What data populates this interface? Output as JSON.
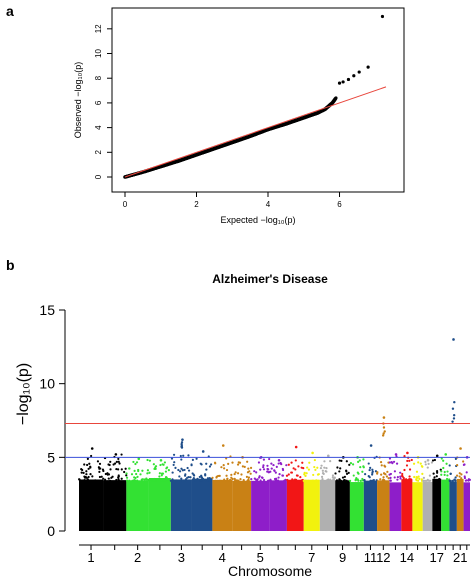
{
  "panels": {
    "a": "a",
    "b": "b"
  },
  "chart_data": [
    {
      "type": "scatter",
      "panel": "a",
      "title": "",
      "xlabel": "Expected  −log₁₀(p)",
      "ylabel": "Observed  −log₁₀(p)",
      "xlim": [
        0,
        7.3
      ],
      "ylim": [
        0,
        13.2
      ],
      "xticks": [
        "0",
        "2",
        "4",
        "6"
      ],
      "yticks": [
        "0",
        "2",
        "4",
        "6",
        "8",
        "10",
        "12"
      ],
      "grid": false,
      "series": [
        {
          "color": "#000000",
          "points": [
            [
              0.0,
              0.0
            ],
            [
              0.5,
              0.4
            ],
            [
              1.0,
              0.85
            ],
            [
              1.5,
              1.3
            ],
            [
              2.0,
              1.8
            ],
            [
              2.5,
              2.3
            ],
            [
              3.0,
              2.8
            ],
            [
              3.5,
              3.3
            ],
            [
              4.0,
              3.85
            ],
            [
              4.5,
              4.3
            ],
            [
              5.0,
              4.8
            ],
            [
              5.2,
              5.0
            ],
            [
              5.4,
              5.2
            ],
            [
              5.6,
              5.5
            ],
            [
              5.8,
              6.0
            ],
            [
              5.9,
              6.4
            ],
            [
              6.0,
              7.6
            ],
            [
              6.1,
              7.7
            ],
            [
              6.25,
              7.9
            ],
            [
              6.4,
              8.2
            ],
            [
              6.55,
              8.5
            ],
            [
              6.8,
              8.9
            ],
            [
              7.2,
              13.0
            ]
          ]
        },
        {
          "color": "#e8463c",
          "line": [
            [
              0,
              0
            ],
            [
              7.3,
              7.3
            ]
          ]
        }
      ]
    },
    {
      "type": "scatter",
      "panel": "b",
      "title": "Alzheimer's Disease",
      "xlabel": "Chromosome",
      "ylabel": "−log₁₀(p)",
      "ylim": [
        0,
        15
      ],
      "yticks": [
        "0",
        "5",
        "10",
        "15"
      ],
      "xtick_labels": [
        "1",
        "2",
        "3",
        "4",
        "5",
        "7",
        "9",
        "11",
        "12",
        "14",
        "17",
        "21"
      ],
      "thresholds": [
        {
          "value": 7.3,
          "color": "#e8463c"
        },
        {
          "value": 5.0,
          "color": "#3a4fd9"
        }
      ],
      "chromosomes": [
        {
          "label": "1",
          "color": "#000000",
          "peak": 5.6
        },
        {
          "label": "",
          "color": "#000000",
          "peak": 5.2
        },
        {
          "label": "2",
          "color": "#33e133",
          "peak": 4.9
        },
        {
          "label": "",
          "color": "#33e133",
          "peak": 4.8
        },
        {
          "label": "3",
          "color": "#1f4e8a",
          "peak": 6.2
        },
        {
          "label": "",
          "color": "#1f4e8a",
          "peak": 5.4
        },
        {
          "label": "4",
          "color": "#c98115",
          "peak": 5.8
        },
        {
          "label": "",
          "color": "#c98115",
          "peak": 5.0
        },
        {
          "label": "5",
          "color": "#8e1ec9",
          "peak": 5.0
        },
        {
          "label": "",
          "color": "#8e1ec9",
          "peak": 4.8
        },
        {
          "label": "",
          "color": "#f21616",
          "peak": 5.7
        },
        {
          "label": "7",
          "color": "#f2f20d",
          "peak": 5.3
        },
        {
          "label": "",
          "color": "#b0b0b0",
          "peak": 5.1
        },
        {
          "label": "9",
          "color": "#000000",
          "peak": 5.0
        },
        {
          "label": "",
          "color": "#33e133",
          "peak": 5.0
        },
        {
          "label": "11",
          "color": "#1f4e8a",
          "peak": 5.8
        },
        {
          "label": "12",
          "color": "#c98115",
          "peak": 7.7
        },
        {
          "label": "",
          "color": "#8e1ec9",
          "peak": 5.2
        },
        {
          "label": "14",
          "color": "#f21616",
          "peak": 5.3
        },
        {
          "label": "",
          "color": "#f2f20d",
          "peak": 5.0
        },
        {
          "label": "",
          "color": "#b0b0b0",
          "peak": 4.8
        },
        {
          "label": "17",
          "color": "#000000",
          "peak": 5.1
        },
        {
          "label": "",
          "color": "#33e133",
          "peak": 5.2
        },
        {
          "label": "",
          "color": "#1f4e8a",
          "peak": 13.0
        },
        {
          "label": "21",
          "color": "#c98115",
          "peak": 5.6
        },
        {
          "label": "",
          "color": "#8e1ec9",
          "peak": 5.0
        }
      ]
    }
  ]
}
